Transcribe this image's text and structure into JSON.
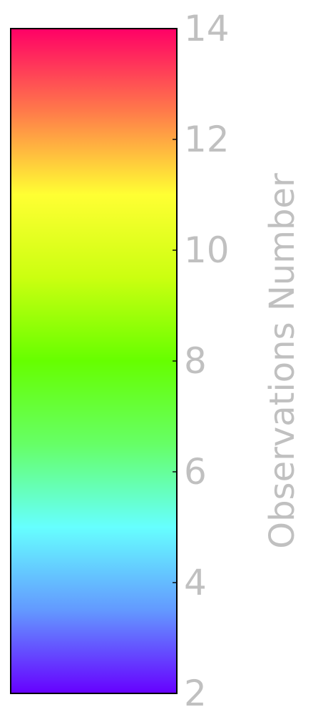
{
  "chart_data": {
    "type": "heatmap",
    "subtype": "colorbar",
    "orientation": "vertical",
    "ylabel": "Observations Number",
    "ylim": [
      2,
      14
    ],
    "ticks": [
      2,
      4,
      6,
      8,
      10,
      12,
      14
    ],
    "tick_labels": [
      "2",
      "4",
      "6",
      "8",
      "10",
      "12",
      "14"
    ],
    "colorscale": [
      {
        "value": 2.0,
        "color": "#6600ff"
      },
      {
        "value": 3.5,
        "color": "#6399ff"
      },
      {
        "value": 5.0,
        "color": "#66ffff"
      },
      {
        "value": 6.5,
        "color": "#66ff66"
      },
      {
        "value": 8.0,
        "color": "#66ff00"
      },
      {
        "value": 9.5,
        "color": "#cbff10"
      },
      {
        "value": 11.0,
        "color": "#ffff33"
      },
      {
        "value": 12.5,
        "color": "#ff7b4a"
      },
      {
        "value": 14.0,
        "color": "#ff0066"
      }
    ],
    "label_color": "#c0c0c0",
    "frame_color": "#000000"
  }
}
